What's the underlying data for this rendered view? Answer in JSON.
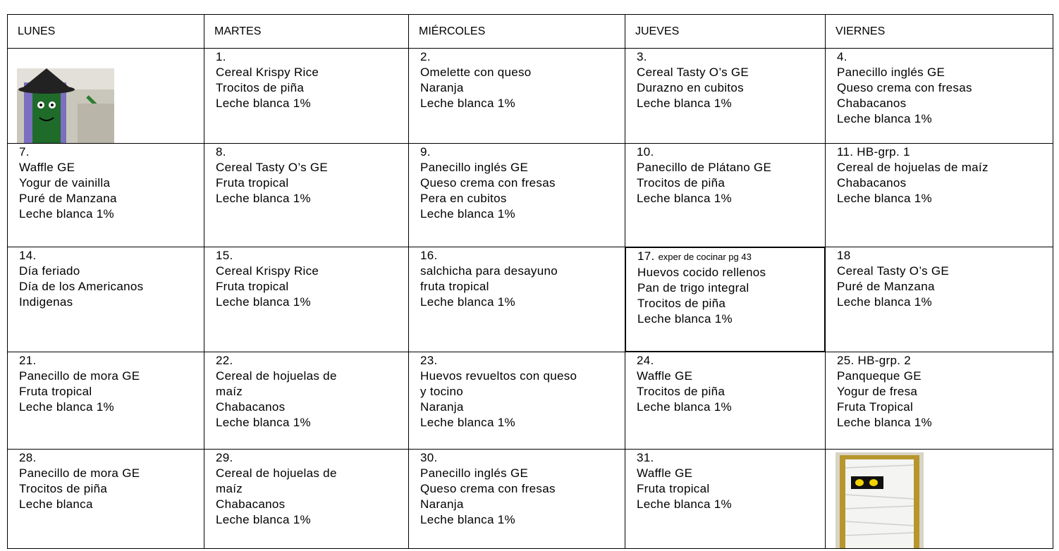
{
  "table": {
    "header": [
      "LUNES",
      "MARTES",
      "MIÉRCOLES",
      "JUEVES",
      "VIERNES"
    ],
    "rows": [
      [
        null,
        {
          "number": "1.",
          "lines": [
            "Cereal Krispy Rice",
            "Trocitos de piña",
            "Leche blanca 1%"
          ]
        },
        {
          "number": "2.",
          "lines": [
            "Omelette con queso",
            "Naranja",
            "Leche blanca 1%"
          ]
        },
        {
          "number": "3.",
          "lines": [
            "Cereal Tasty O’s GE",
            "Durazno en cubitos",
            "Leche blanca 1%"
          ]
        },
        {
          "number": "4.",
          "lines": [
            "Panecillo inglés GE",
            "Queso crema con fresas",
            "Chabacanos",
            "Leche blanca 1%"
          ]
        }
      ],
      [
        {
          "number": "7.",
          "lines": [
            "Waffle GE",
            "Yogur de vainilla",
            "Puré de Manzana",
            "Leche blanca 1%"
          ]
        },
        {
          "number": "8.",
          "lines": [
            "Cereal Tasty O’s GE",
            "Fruta tropical",
            "Leche blanca 1%"
          ]
        },
        {
          "number": "9.",
          "lines": [
            "Panecillo inglés GE",
            "Queso crema con fresas",
            "Pera en cubitos",
            "Leche blanca 1%"
          ]
        },
        {
          "number": "10.",
          "lines": [
            "Panecillo de Plátano GE",
            "Trocitos de piña",
            "Leche blanca 1%"
          ]
        },
        {
          "number": "11. HB-grp. 1",
          "lines": [
            "Cereal de hojuelas de maíz",
            "Chabacanos",
            "Leche blanca 1%"
          ]
        }
      ],
      [
        {
          "number": "14.",
          "lines": [
            "Día feriado",
            "Día de los Americanos",
            "Indigenas"
          ]
        },
        {
          "number": "15.",
          "lines": [
            "Cereal Krispy Rice",
            "Fruta tropical",
            "Leche blanca 1%"
          ]
        },
        {
          "number": "16.",
          "lines": [
            "salchicha para desayuno",
            "fruta tropical",
            "Leche blanca 1%"
          ]
        },
        {
          "number": "17.",
          "note": "exper de cocinar pg 43",
          "lines": [
            "Huevos cocido rellenos",
            "Pan de trigo integral",
            "Trocitos de piña",
            "Leche blanca 1%"
          ]
        },
        {
          "number": "18",
          "lines": [
            "Cereal Tasty O’s GE",
            "Puré de Manzana",
            "Leche blanca 1%"
          ]
        }
      ],
      [
        {
          "number": "21.",
          "lines": [
            "Panecillo de mora GE",
            "Fruta tropical",
            "Leche blanca 1%"
          ]
        },
        {
          "number": "22.",
          "lines": [
            "Cereal de hojuelas de",
            "maíz",
            "Chabacanos",
            "Leche blanca 1%"
          ]
        },
        {
          "number": "23.",
          "lines": [
            "Huevos revueltos con queso",
            "y tocino",
            "Naranja",
            "Leche blanca 1%"
          ]
        },
        {
          "number": "24.",
          "lines": [
            "Waffle GE",
            "Trocitos de piña",
            "Leche blanca 1%"
          ]
        },
        {
          "number": "25. HB-grp. 2",
          "lines": [
            "Panqueque GE",
            "Yogur de fresa",
            "Fruta Tropical",
            "Leche blanca 1%"
          ]
        }
      ],
      [
        {
          "number": "28.",
          "lines": [
            "Panecillo de mora GE",
            "Trocitos de piña",
            "Leche blanca"
          ]
        },
        {
          "number": "29.",
          "lines": [
            "Cereal de hojuelas de",
            "maíz",
            "Chabacanos",
            "Leche blanca 1%"
          ]
        },
        {
          "number": "30.",
          "lines": [
            "Panecillo inglés GE",
            "Queso crema con fresas",
            "Naranja",
            "Leche blanca 1%"
          ]
        },
        {
          "number": "31.",
          "lines": [
            "Waffle GE",
            "Fruta tropical",
            "Leche blanca 1%"
          ]
        },
        null
      ]
    ]
  }
}
